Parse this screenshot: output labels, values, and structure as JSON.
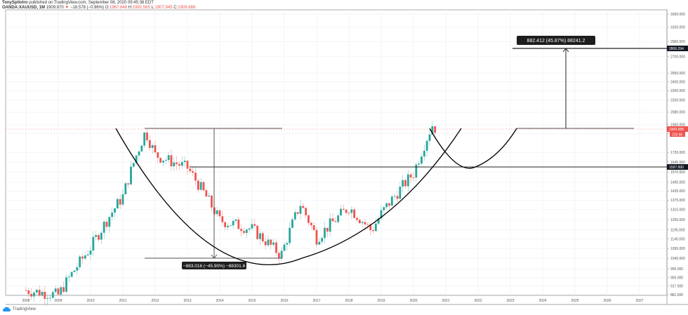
{
  "header": {
    "author": "TonySpilotro",
    "published_text": "published on TradingView.com, September 08, 2020 09:45:38 EDT",
    "symbol": "OANDA:XAUUSD, 1M",
    "last": "1909.870",
    "change": "−18.578 (−0.96%)",
    "o_label": "O:",
    "open": "1967.646",
    "h_label": "H:",
    "high": "1992.565",
    "l_label": "L:",
    "low": "1907.945",
    "c_label": "C:",
    "close": "1909.688"
  },
  "footer": {
    "brand": "TradingView"
  },
  "colors": {
    "up": "#26a69a",
    "down": "#ef5350",
    "drawing": "#000000",
    "grid": "#eef1f6"
  },
  "annotations": {
    "upper_measure": "882.412 (45.87%) 88241.2",
    "lower_measure": "−883.016 (−45.90%) −88301.6",
    "price_tag_target": "2806.294",
    "price_tag_current": "1909.688",
    "price_tag_countdown": "22d 8h",
    "price_tag_support": "1597.990"
  },
  "chart_data": {
    "type": "candlestick",
    "title": "OANDA:XAUUSD, 1M",
    "xlabel": "",
    "ylabel": "",
    "x_ticks": [
      "2008",
      "2009",
      "2010",
      "2011",
      "2012",
      "2013",
      "2014",
      "2015",
      "2016",
      "2017",
      "2018",
      "2019",
      "2020",
      "2021",
      "2022",
      "2023",
      "2024",
      "2025",
      "2026",
      "2027"
    ],
    "y_ticks": [
      "3300.000",
      "3100.000",
      "2900.000",
      "2700.000",
      "2500.000",
      "2400.000",
      "2300.000",
      "2200.000",
      "2080.000",
      "1960.000",
      "1880.000",
      "1720.000",
      "1645.000",
      "1570.000",
      "1495.000",
      "1435.000",
      "1375.000",
      "1315.000",
      "1255.000",
      "1195.000",
      "1145.000",
      "1095.000",
      "1045.000",
      "995.000",
      "955.000",
      "917.500",
      "881.500"
    ],
    "ylim": [
      875,
      3350
    ],
    "scale": "log",
    "grid": true,
    "approx_yearly_path": [
      {
        "x": "2008",
        "price": 900
      },
      {
        "x": "2009",
        "price": 880
      },
      {
        "x": "2010",
        "price": 1100
      },
      {
        "x": "2011",
        "price": 1400
      },
      {
        "x": "2011.7",
        "price": 1900
      },
      {
        "x": "2012",
        "price": 1700
      },
      {
        "x": "2013",
        "price": 1600
      },
      {
        "x": "2014",
        "price": 1250
      },
      {
        "x": "2015",
        "price": 1200
      },
      {
        "x": "2015.9",
        "price": 1060
      },
      {
        "x": "2016.5",
        "price": 1350
      },
      {
        "x": "2017",
        "price": 1150
      },
      {
        "x": "2018",
        "price": 1330
      },
      {
        "x": "2018.7",
        "price": 1190
      },
      {
        "x": "2019",
        "price": 1290
      },
      {
        "x": "2020",
        "price": 1560
      },
      {
        "x": "2020.6",
        "price": 1970
      },
      {
        "x": "2020.7",
        "price": 1909.688
      }
    ],
    "drawings": [
      {
        "type": "horizontal_segment",
        "price": 1920,
        "from": "2011.7",
        "to": "2015.9"
      },
      {
        "type": "horizontal_segment",
        "price": 1040,
        "from": "2011.7",
        "to": "2015.9"
      },
      {
        "type": "price_range",
        "label": "−883.016 (−45.90%) −88301.6"
      },
      {
        "type": "horizontal_line",
        "price": 1597.99,
        "from": "2013.1",
        "to": "right_edge"
      },
      {
        "type": "horizontal_segment",
        "price": 1920,
        "from": "2023.2",
        "to": "2026.3"
      },
      {
        "type": "horizontal_segment",
        "price": 2806.294,
        "from": "2023.0",
        "to": "right_edge"
      },
      {
        "type": "price_range",
        "label": "882.412 (45.87%) 88241.2"
      },
      {
        "type": "arc",
        "description": "cup, 2010.8 → 2021.3"
      },
      {
        "type": "arc",
        "description": "handle, 2020.6 → 2023.2"
      }
    ]
  }
}
